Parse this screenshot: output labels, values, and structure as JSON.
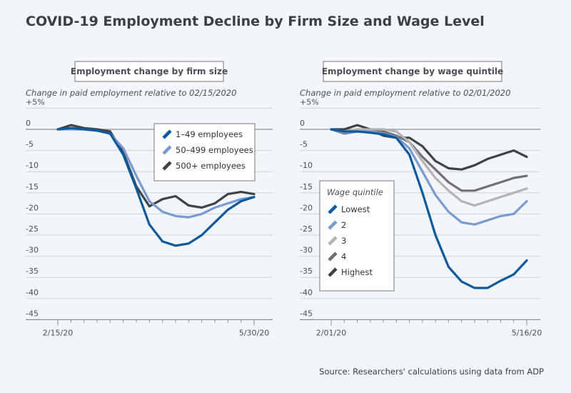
{
  "title": "COVID-19 Employment Decline by Firm Size and Wage Level",
  "source": "Source: Researchers' calculations using data from ADP",
  "chart_data": [
    {
      "type": "line",
      "panel_title": "Employment change by firm size",
      "ylabel": "Change in paid employment relative to 02/15/2020",
      "ylim": [
        -45,
        5
      ],
      "yticks": [
        5,
        0,
        -5,
        -10,
        -15,
        -20,
        -25,
        -30,
        -35,
        -40,
        -45
      ],
      "ytick_labels": [
        "+5%",
        "0",
        "-5",
        "-10",
        "-15",
        "-20",
        "-25",
        "-30",
        "-35",
        "-40",
        "-45"
      ],
      "x_tick_labels": [
        "2/15/20",
        "5/30/20"
      ],
      "x_count": 16,
      "grid": true,
      "legend_placement": "top-right",
      "series": [
        {
          "name": "1–49 employees",
          "color": "#0c5a9e",
          "values": [
            0,
            0.3,
            0,
            -0.3,
            -1,
            -6,
            -14,
            -22.5,
            -26.5,
            -27.5,
            -27,
            -25,
            -22,
            -19,
            -17,
            -16
          ]
        },
        {
          "name": "50–499 employees",
          "color": "#7a9ad0",
          "values": [
            0,
            0,
            0,
            -0.3,
            -1,
            -4.5,
            -11,
            -17,
            -19.5,
            -20.5,
            -20.8,
            -20,
            -18.5,
            -17.5,
            -16.5,
            -16
          ]
        },
        {
          "name": "500+ employees",
          "color": "#3f4246",
          "values": [
            0,
            1,
            0.3,
            0,
            -0.5,
            -5.5,
            -13.5,
            -18.2,
            -16.5,
            -15.8,
            -18,
            -18.5,
            -17.5,
            -15.3,
            -14.8,
            -15.3
          ]
        }
      ]
    },
    {
      "type": "line",
      "panel_title": "Employment change by wage quintile",
      "ylabel": "Change in paid employment relative to 02/01/2020",
      "ylim": [
        -45,
        5
      ],
      "yticks": [
        5,
        0,
        -5,
        -10,
        -15,
        -20,
        -25,
        -30,
        -35,
        -40,
        -45
      ],
      "ytick_labels": [
        "+5%",
        "0",
        "-5",
        "-10",
        "-15",
        "-20",
        "-25",
        "-30",
        "-35",
        "-40",
        "-45"
      ],
      "x_tick_labels": [
        "2/01/20",
        "5/16/20"
      ],
      "x_count": 16,
      "grid": true,
      "legend_title": "Wage quintile",
      "legend_placement": "bottom-left",
      "series": [
        {
          "name": "Lowest",
          "color": "#0c5a9e",
          "values": [
            0,
            -0.5,
            -0.5,
            -0.8,
            -1.2,
            -2,
            -6,
            -15,
            -25,
            -32.5,
            -36,
            -37.5,
            -37.5,
            -35.8,
            -34.3,
            -31
          ]
        },
        {
          "name": "2",
          "color": "#7a9ad0",
          "values": [
            0,
            -0.8,
            -0.5,
            -0.5,
            -1,
            -1.8,
            -4.5,
            -10,
            -15.5,
            -19.5,
            -22,
            -22.5,
            -21.5,
            -20.5,
            -20,
            -17
          ]
        },
        {
          "name": "3",
          "color": "#b3b3b3",
          "values": [
            0,
            -0.5,
            0,
            0,
            0,
            -0.5,
            -3,
            -7.5,
            -11.5,
            -14.5,
            -17,
            -18,
            -17,
            -16,
            -15,
            -14
          ]
        },
        {
          "name": "4",
          "color": "#6f7074",
          "values": [
            0,
            -1,
            -0.5,
            0,
            -0.5,
            -1.5,
            -3,
            -6.5,
            -9.5,
            -12.5,
            -14.5,
            -14.5,
            -13.5,
            -12.5,
            -11.5,
            -11
          ]
        },
        {
          "name": "Highest",
          "color": "#3f4246",
          "values": [
            0,
            0,
            1,
            0,
            -1.5,
            -2,
            -2,
            -4,
            -7.5,
            -9.2,
            -9.5,
            -8.5,
            -7,
            -6,
            -5,
            -6.5
          ]
        }
      ]
    }
  ]
}
